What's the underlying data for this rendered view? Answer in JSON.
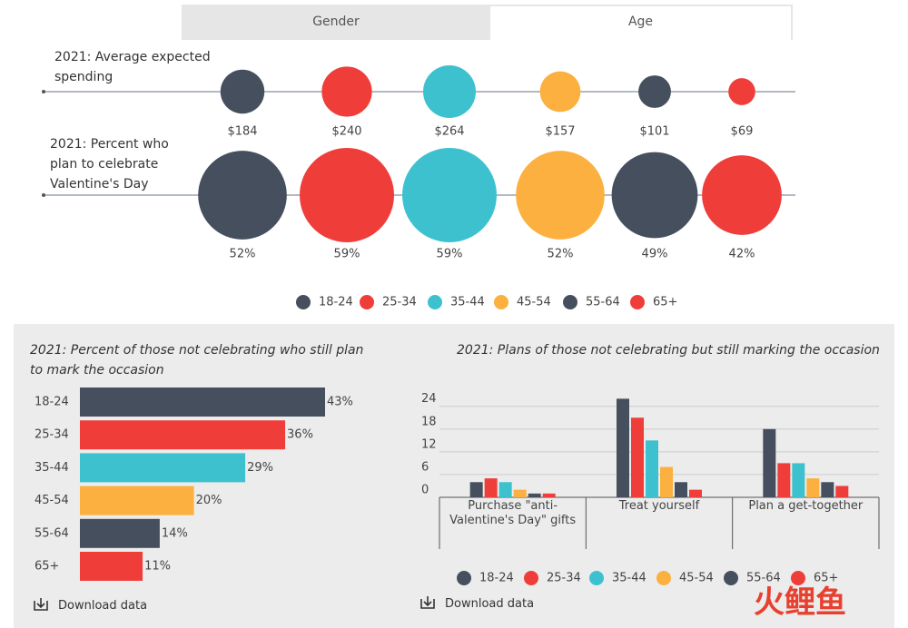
{
  "tabs": [
    "Gender",
    "Age"
  ],
  "chart_data": [
    {
      "type": "bubble",
      "title": "2021: Average expected spending",
      "values": [
        184,
        240,
        264,
        157,
        101,
        69
      ],
      "value_labels": [
        "$184",
        "$240",
        "$264",
        "$157",
        "$101",
        "$69"
      ],
      "colors": [
        "#454f5e",
        "#ef3e3a",
        "#3ec1cf",
        "#fbb040",
        "#454f5e",
        "#ef3e3a"
      ]
    },
    {
      "type": "bubble",
      "title": "2021: Percent who plan to celebrate Valentine's Day",
      "categories": [
        "18-24",
        "25-34",
        "35-44",
        "45-54",
        "55-64",
        "65+"
      ],
      "values": [
        52,
        59,
        59,
        52,
        49,
        42
      ],
      "value_labels": [
        "52%",
        "59%",
        "59%",
        "52%",
        "49%",
        "42%"
      ],
      "colors": [
        "#454f5e",
        "#ef3e3a",
        "#3ec1cf",
        "#fbb040",
        "#454f5e",
        "#ef3e3a"
      ],
      "legend": true
    },
    {
      "type": "hbar",
      "title": "2021: Percent of those not celebrating who still plan to mark the occasion",
      "categories": [
        "18-24",
        "25-34",
        "35-44",
        "45-54",
        "55-64",
        "65+"
      ],
      "values": [
        43,
        36,
        29,
        20,
        14,
        11
      ],
      "value_labels": [
        "43%",
        "36%",
        "29%",
        "20%",
        "14%",
        "11%"
      ],
      "colors": [
        "#454f5e",
        "#ef3e3a",
        "#3ec1cf",
        "#fbb040",
        "#454f5e",
        "#ef3e3a"
      ]
    },
    {
      "type": "grouped_bar",
      "title": "2021: Plans of those not celebrating but still marking the occasion",
      "categories": [
        "Purchase \"anti-Valentine's Day\" gifts",
        "Treat yourself",
        "Plan a get-together"
      ],
      "series": [
        {
          "name": "18-24",
          "color": "#454f5e",
          "values": [
            4,
            26,
            18
          ]
        },
        {
          "name": "25-34",
          "color": "#ef3e3a",
          "values": [
            5,
            21,
            9
          ]
        },
        {
          "name": "35-44",
          "color": "#3ec1cf",
          "values": [
            4,
            15,
            9
          ]
        },
        {
          "name": "45-54",
          "color": "#fbb040",
          "values": [
            2,
            8,
            5
          ]
        },
        {
          "name": "55-64",
          "color": "#454f5e",
          "values": [
            1,
            4,
            4
          ]
        },
        {
          "name": "65+",
          "color": "#ef3e3a",
          "values": [
            1,
            2,
            3
          ]
        }
      ],
      "ylim": [
        0,
        28
      ],
      "yticks": [
        0,
        6,
        12,
        18,
        24
      ],
      "grid": true,
      "legend": true
    }
  ],
  "download_labels": [
    "Download data",
    "Download data"
  ],
  "watermark": "火鲤鱼"
}
